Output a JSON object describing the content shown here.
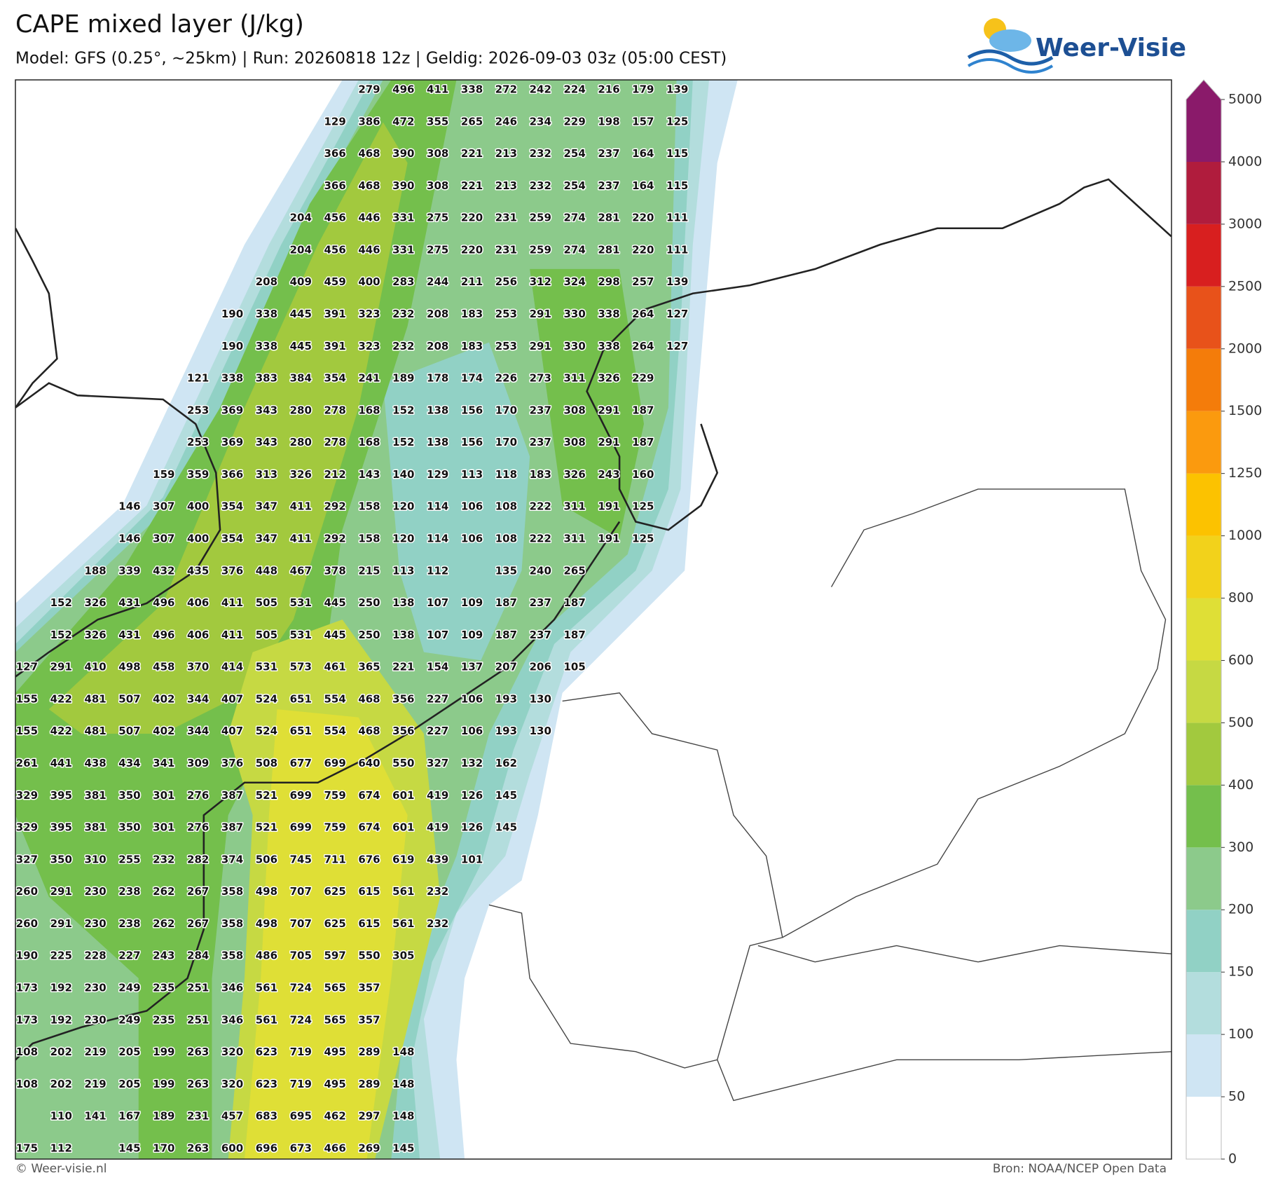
{
  "map": {
    "title": "CAPE mixed layer (J/kg)",
    "subtitle": "Model: GFS (0.25°, ~25km)  |  Run: 20260818 12z  |  Geldig: 2026-09-03 03z (05:00 CEST)",
    "logo": "Weer-Visie",
    "footer_left": "© Weer-visie.nl",
    "footer_right": "Bron: NOAA/NCEP Open Data",
    "colorbar": {
      "ticks": [
        0,
        50,
        100,
        150,
        200,
        300,
        400,
        500,
        600,
        800,
        1000,
        1250,
        1500,
        2000,
        2500,
        3000,
        4000,
        5000
      ],
      "colors": [
        "#ffffff",
        "#cfe5f3",
        "#b3dddd",
        "#91d1c5",
        "#8cca8b",
        "#74bf4c",
        "#a2c93e",
        "#c6d943",
        "#dfdf36",
        "#f2d21b",
        "#fcc200",
        "#fb9a0e",
        "#f47c0a",
        "#e8521a",
        "#d81f1f",
        "#b01c3d",
        "#8a1a6a"
      ]
    },
    "grid": [
      [
        null,
        null,
        null,
        null,
        null,
        null,
        null,
        null,
        null,
        null,
        279,
        496,
        411,
        338,
        272,
        242,
        224,
        216,
        179,
        139
      ],
      [
        null,
        null,
        null,
        null,
        null,
        null,
        null,
        null,
        null,
        129,
        386,
        472,
        355,
        265,
        246,
        234,
        229,
        198,
        157,
        125
      ],
      [
        null,
        null,
        null,
        null,
        null,
        null,
        null,
        null,
        null,
        366,
        468,
        390,
        308,
        221,
        213,
        232,
        254,
        237,
        164,
        115
      ],
      [
        null,
        null,
        null,
        null,
        null,
        null,
        null,
        null,
        null,
        366,
        468,
        390,
        308,
        221,
        213,
        232,
        254,
        237,
        164,
        115
      ],
      [
        null,
        null,
        null,
        null,
        null,
        null,
        null,
        null,
        204,
        456,
        446,
        331,
        275,
        220,
        231,
        259,
        274,
        281,
        220,
        111
      ],
      [
        null,
        null,
        null,
        null,
        null,
        null,
        null,
        null,
        204,
        456,
        446,
        331,
        275,
        220,
        231,
        259,
        274,
        281,
        220,
        111
      ],
      [
        null,
        null,
        null,
        null,
        null,
        null,
        null,
        208,
        409,
        459,
        400,
        283,
        244,
        211,
        256,
        312,
        324,
        298,
        257,
        139
      ],
      [
        null,
        null,
        null,
        null,
        null,
        null,
        190,
        338,
        445,
        391,
        323,
        232,
        208,
        183,
        253,
        291,
        330,
        338,
        264,
        127
      ],
      [
        null,
        null,
        null,
        null,
        null,
        null,
        190,
        338,
        445,
        391,
        323,
        232,
        208,
        183,
        253,
        291,
        330,
        338,
        264,
        127
      ],
      [
        null,
        null,
        null,
        null,
        null,
        121,
        338,
        383,
        384,
        354,
        241,
        189,
        178,
        174,
        226,
        273,
        311,
        326,
        229,
        null
      ],
      [
        null,
        null,
        null,
        null,
        null,
        253,
        369,
        343,
        280,
        278,
        168,
        152,
        138,
        156,
        170,
        237,
        308,
        291,
        187,
        null
      ],
      [
        null,
        null,
        null,
        null,
        null,
        253,
        369,
        343,
        280,
        278,
        168,
        152,
        138,
        156,
        170,
        237,
        308,
        291,
        187,
        null
      ],
      [
        null,
        null,
        null,
        null,
        159,
        359,
        366,
        313,
        326,
        212,
        143,
        140,
        129,
        113,
        118,
        183,
        326,
        243,
        160,
        null
      ],
      [
        null,
        null,
        null,
        146,
        307,
        400,
        354,
        347,
        411,
        292,
        158,
        120,
        114,
        106,
        108,
        222,
        311,
        191,
        125,
        null
      ],
      [
        null,
        null,
        null,
        146,
        307,
        400,
        354,
        347,
        411,
        292,
        158,
        120,
        114,
        106,
        108,
        222,
        311,
        191,
        125,
        null
      ],
      [
        null,
        null,
        188,
        339,
        432,
        435,
        376,
        448,
        467,
        378,
        215,
        113,
        112,
        null,
        135,
        240,
        265,
        null,
        null,
        null
      ],
      [
        null,
        152,
        326,
        431,
        496,
        406,
        411,
        505,
        531,
        445,
        250,
        138,
        107,
        109,
        187,
        237,
        187,
        null,
        null,
        null
      ],
      [
        null,
        152,
        326,
        431,
        496,
        406,
        411,
        505,
        531,
        445,
        250,
        138,
        107,
        109,
        187,
        237,
        187,
        null,
        null,
        null
      ],
      [
        127,
        291,
        410,
        498,
        458,
        370,
        414,
        531,
        573,
        461,
        365,
        221,
        154,
        137,
        207,
        206,
        105,
        null,
        null,
        null
      ],
      [
        155,
        422,
        481,
        507,
        402,
        344,
        407,
        524,
        651,
        554,
        468,
        356,
        227,
        106,
        193,
        130,
        null,
        null,
        null,
        null
      ],
      [
        155,
        422,
        481,
        507,
        402,
        344,
        407,
        524,
        651,
        554,
        468,
        356,
        227,
        106,
        193,
        130,
        null,
        null,
        null,
        null
      ],
      [
        261,
        441,
        438,
        434,
        341,
        309,
        376,
        508,
        677,
        699,
        640,
        550,
        327,
        132,
        162,
        null,
        null,
        null,
        null,
        null
      ],
      [
        329,
        395,
        381,
        350,
        301,
        276,
        387,
        521,
        699,
        759,
        674,
        601,
        419,
        126,
        145,
        null,
        null,
        null,
        null,
        null
      ],
      [
        329,
        395,
        381,
        350,
        301,
        276,
        387,
        521,
        699,
        759,
        674,
        601,
        419,
        126,
        145,
        null,
        null,
        null,
        null,
        null
      ],
      [
        327,
        350,
        310,
        255,
        232,
        282,
        374,
        506,
        745,
        711,
        676,
        619,
        439,
        101,
        null,
        null,
        null,
        null,
        null,
        null
      ],
      [
        260,
        291,
        230,
        238,
        262,
        267,
        358,
        498,
        707,
        625,
        615,
        561,
        232,
        null,
        null,
        null,
        null,
        null,
        null,
        null
      ],
      [
        260,
        291,
        230,
        238,
        262,
        267,
        358,
        498,
        707,
        625,
        615,
        561,
        232,
        null,
        null,
        null,
        null,
        null,
        null,
        null
      ],
      [
        190,
        225,
        228,
        227,
        243,
        284,
        358,
        486,
        705,
        597,
        550,
        305,
        null,
        null,
        null,
        null,
        null,
        null,
        null,
        null
      ],
      [
        173,
        192,
        230,
        249,
        235,
        251,
        346,
        561,
        724,
        565,
        357,
        null,
        null,
        null,
        null,
        null,
        null,
        null,
        null,
        null
      ],
      [
        173,
        192,
        230,
        249,
        235,
        251,
        346,
        561,
        724,
        565,
        357,
        null,
        null,
        null,
        null,
        null,
        null,
        null,
        null,
        null
      ],
      [
        108,
        202,
        219,
        205,
        199,
        263,
        320,
        623,
        719,
        495,
        289,
        148,
        null,
        null,
        null,
        null,
        null,
        null,
        null,
        null
      ],
      [
        108,
        202,
        219,
        205,
        199,
        263,
        320,
        623,
        719,
        495,
        289,
        148,
        null,
        null,
        null,
        null,
        null,
        null,
        null,
        null
      ],
      [
        null,
        110,
        141,
        167,
        189,
        231,
        457,
        683,
        695,
        462,
        297,
        148,
        null,
        null,
        null,
        null,
        null,
        null,
        null,
        null
      ],
      [
        175,
        112,
        null,
        145,
        170,
        263,
        600,
        696,
        673,
        466,
        269,
        145,
        null,
        null,
        null,
        null,
        null,
        null,
        null,
        null
      ]
    ]
  }
}
